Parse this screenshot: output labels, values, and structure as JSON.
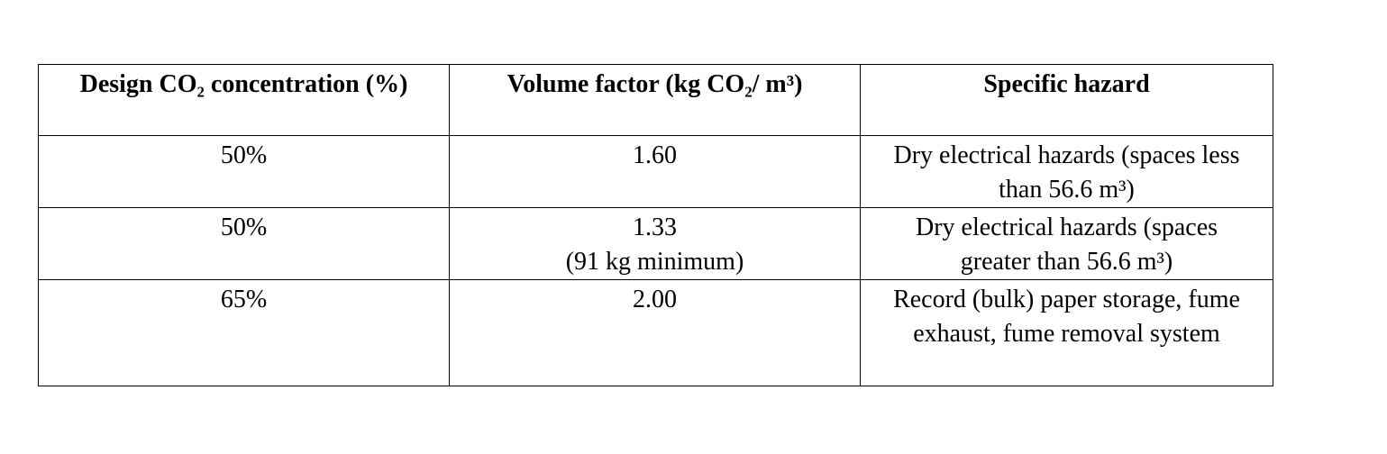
{
  "table": {
    "header": [
      "Design CO₂ concentration (%)",
      "Volume factor (kg CO₂/ m³)",
      "Specific hazard"
    ],
    "rows": [
      [
        "50%",
        "1.60",
        "Dry electrical hazards (spaces less than 56.6 m³)"
      ],
      [
        "50%",
        "1.33\n(91 kg minimum)",
        "Dry electrical hazards (spaces greater than 56.6 m³)"
      ],
      [
        "65%",
        "2.00",
        "Record (bulk) paper storage, fume exhaust, fume removal system"
      ]
    ]
  }
}
